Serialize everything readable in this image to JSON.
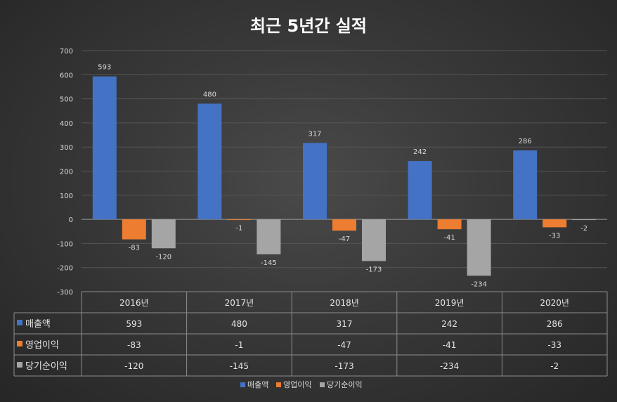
{
  "chart_data": {
    "type": "bar",
    "title": "최근 5년간 실적",
    "categories": [
      "2016년",
      "2017년",
      "2018년",
      "2019년",
      "2020년"
    ],
    "series": [
      {
        "name": "매출액",
        "values": [
          593,
          480,
          317,
          242,
          286
        ],
        "color": "#4472c4"
      },
      {
        "name": "영업이익",
        "values": [
          -83,
          -1,
          -47,
          -41,
          -33
        ],
        "color": "#ed7d31"
      },
      {
        "name": "당기순이익",
        "values": [
          -120,
          -145,
          -173,
          -234,
          -2
        ],
        "color": "#a5a5a5"
      }
    ],
    "ylim": [
      -300,
      700
    ],
    "yticks": [
      700,
      600,
      500,
      400,
      300,
      200,
      100,
      0,
      -100,
      -200,
      -300
    ],
    "grid": true,
    "legend": "bottom",
    "data_table": true
  }
}
